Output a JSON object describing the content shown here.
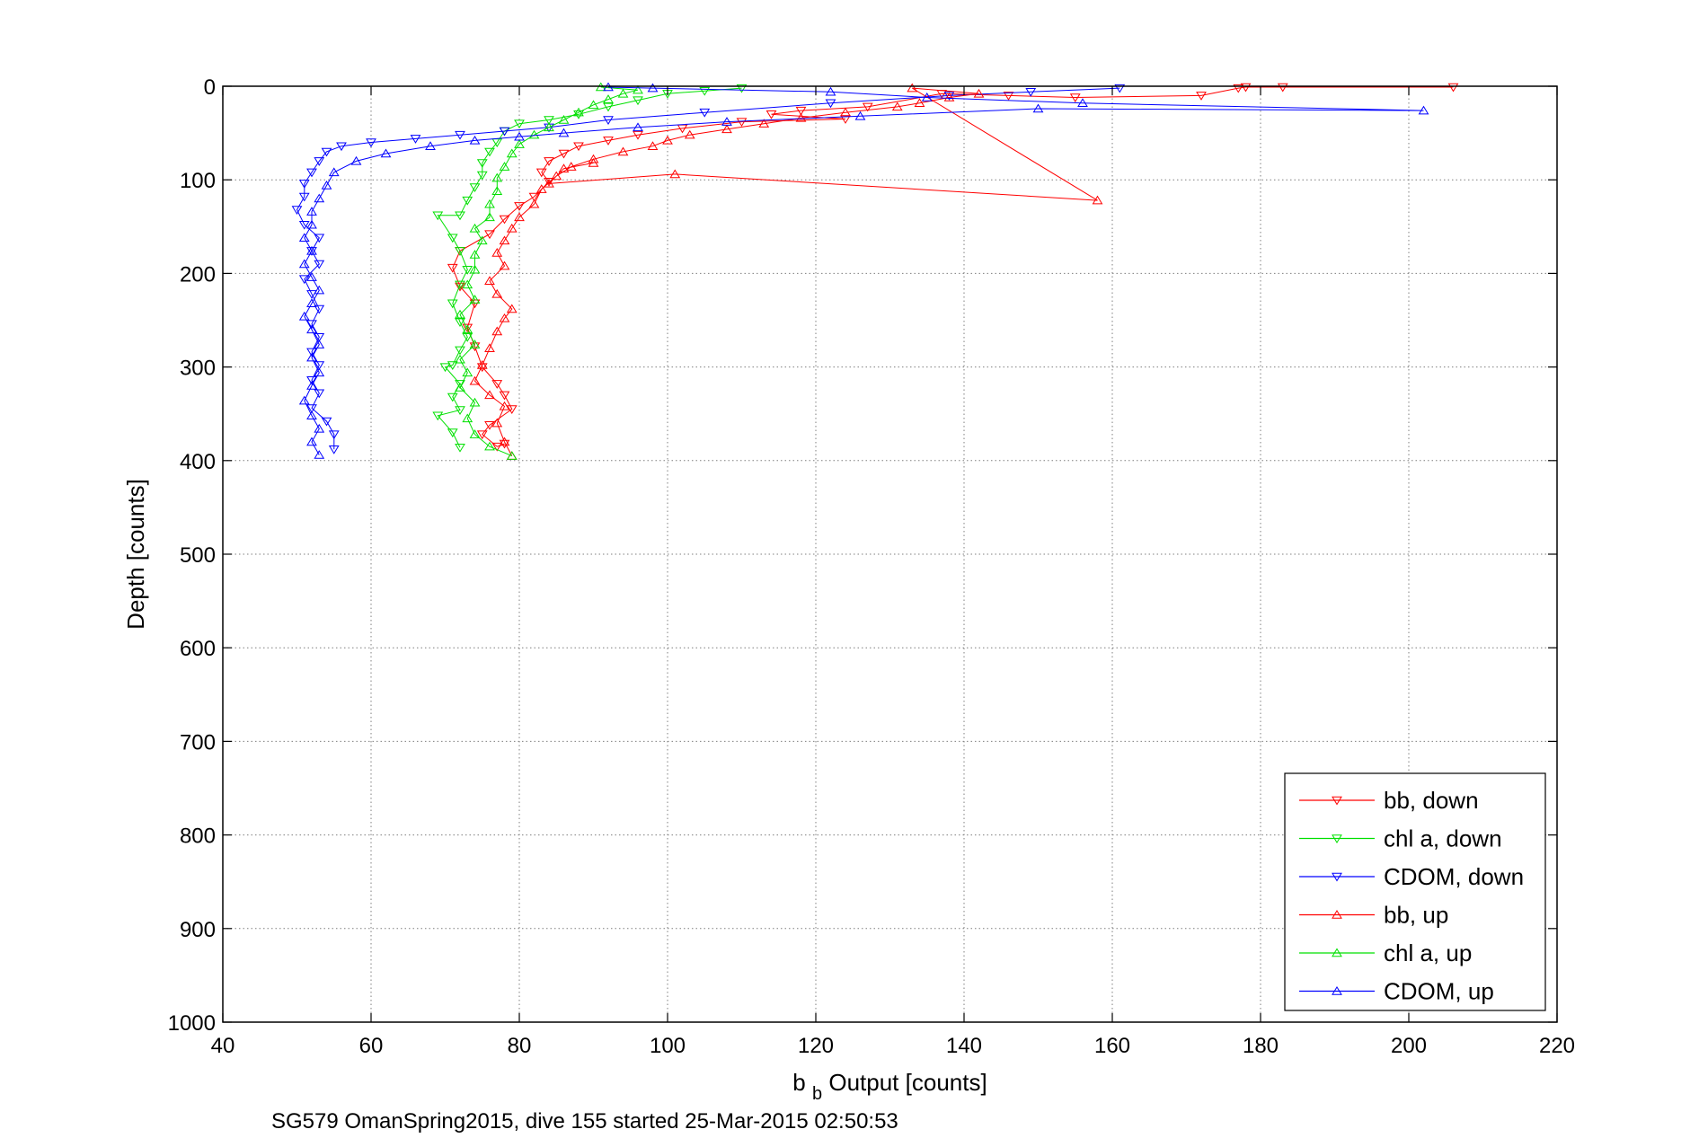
{
  "chart_data": {
    "type": "scatter",
    "title": "",
    "xlabel_main": "b",
    "xlabel_sub": "b",
    "xlabel_rest": " Output [counts]",
    "ylabel": "Depth [counts]",
    "caption": "SG579 OmanSpring2015, dive 155 started 25-Mar-2015 02:50:53",
    "xlim": [
      40,
      220
    ],
    "ylim": [
      0,
      1000
    ],
    "y_reversed": true,
    "x_ticks": [
      40,
      60,
      80,
      100,
      120,
      140,
      160,
      180,
      200,
      220
    ],
    "y_ticks": [
      0,
      100,
      200,
      300,
      400,
      500,
      600,
      700,
      800,
      900,
      1000
    ],
    "x_tick_labels": [
      "40",
      "60",
      "80",
      "100",
      "120",
      "140",
      "160",
      "180",
      "200",
      "220"
    ],
    "y_tick_labels": [
      "0",
      "100",
      "200",
      "300",
      "400",
      "500",
      "600",
      "700",
      "800",
      "900",
      "1000"
    ],
    "grid": true,
    "legend_position": "bottom-right",
    "series": [
      {
        "name": "bb, down",
        "color": "#ff0000",
        "marker": "triangle-down",
        "points": [
          [
            206,
            1
          ],
          [
            183,
            1
          ],
          [
            178,
            1
          ],
          [
            177,
            2
          ],
          [
            172,
            10
          ],
          [
            155,
            12
          ],
          [
            146,
            10
          ],
          [
            137,
            8
          ],
          [
            127,
            22
          ],
          [
            118,
            26
          ],
          [
            114,
            30
          ],
          [
            124,
            35
          ],
          [
            110,
            38
          ],
          [
            102,
            45
          ],
          [
            96,
            52
          ],
          [
            92,
            58
          ],
          [
            88,
            64
          ],
          [
            86,
            72
          ],
          [
            84,
            80
          ],
          [
            83,
            92
          ],
          [
            84,
            102
          ],
          [
            82,
            118
          ],
          [
            80,
            128
          ],
          [
            78,
            142
          ],
          [
            76,
            158
          ],
          [
            72,
            176
          ],
          [
            71,
            194
          ],
          [
            72,
            214
          ],
          [
            74,
            232
          ],
          [
            73,
            258
          ],
          [
            74,
            278
          ],
          [
            75,
            300
          ],
          [
            77,
            318
          ],
          [
            78,
            330
          ],
          [
            79,
            345
          ],
          [
            76,
            362
          ],
          [
            75,
            372
          ],
          [
            77,
            385
          ],
          [
            78,
            382
          ]
        ]
      },
      {
        "name": "chl a, down",
        "color": "#00e000",
        "marker": "triangle-down",
        "points": [
          [
            110,
            2
          ],
          [
            105,
            5
          ],
          [
            100,
            8
          ],
          [
            96,
            15
          ],
          [
            92,
            22
          ],
          [
            88,
            30
          ],
          [
            84,
            36
          ],
          [
            80,
            40
          ],
          [
            78,
            48
          ],
          [
            77,
            60
          ],
          [
            76,
            70
          ],
          [
            75,
            82
          ],
          [
            75,
            95
          ],
          [
            74,
            108
          ],
          [
            73,
            122
          ],
          [
            72,
            138
          ],
          [
            69,
            138
          ],
          [
            71,
            162
          ],
          [
            72,
            176
          ],
          [
            73,
            196
          ],
          [
            72,
            212
          ],
          [
            71,
            232
          ],
          [
            72,
            252
          ],
          [
            73,
            268
          ],
          [
            72,
            282
          ],
          [
            71,
            298
          ],
          [
            70,
            300
          ],
          [
            72,
            318
          ],
          [
            71,
            332
          ],
          [
            72,
            346
          ],
          [
            69,
            352
          ],
          [
            71,
            370
          ],
          [
            72,
            386
          ]
        ]
      },
      {
        "name": "CDOM, down",
        "color": "#0000ff",
        "marker": "triangle-down",
        "points": [
          [
            161,
            2
          ],
          [
            149,
            6
          ],
          [
            138,
            10
          ],
          [
            122,
            18
          ],
          [
            105,
            28
          ],
          [
            92,
            36
          ],
          [
            84,
            44
          ],
          [
            78,
            48
          ],
          [
            72,
            52
          ],
          [
            66,
            56
          ],
          [
            60,
            60
          ],
          [
            56,
            64
          ],
          [
            54,
            70
          ],
          [
            53,
            80
          ],
          [
            52,
            92
          ],
          [
            51,
            104
          ],
          [
            51,
            118
          ],
          [
            50,
            132
          ],
          [
            51,
            148
          ],
          [
            53,
            162
          ],
          [
            52,
            176
          ],
          [
            53,
            190
          ],
          [
            51,
            206
          ],
          [
            52,
            222
          ],
          [
            53,
            238
          ],
          [
            52,
            254
          ],
          [
            53,
            268
          ],
          [
            52,
            284
          ],
          [
            53,
            298
          ],
          [
            52,
            314
          ],
          [
            53,
            328
          ],
          [
            52,
            344
          ],
          [
            54,
            358
          ],
          [
            55,
            372
          ],
          [
            55,
            388
          ]
        ]
      },
      {
        "name": "bb, up",
        "color": "#ff0000",
        "marker": "triangle-up",
        "points": [
          [
            79,
            395
          ],
          [
            78,
            380
          ],
          [
            77,
            360
          ],
          [
            78,
            342
          ],
          [
            76,
            330
          ],
          [
            74,
            315
          ],
          [
            75,
            298
          ],
          [
            76,
            280
          ],
          [
            77,
            262
          ],
          [
            78,
            248
          ],
          [
            79,
            238
          ],
          [
            77,
            222
          ],
          [
            76,
            208
          ],
          [
            78,
            192
          ],
          [
            77,
            178
          ],
          [
            78,
            165
          ],
          [
            79,
            152
          ],
          [
            80,
            140
          ],
          [
            82,
            126
          ],
          [
            83,
            110
          ],
          [
            85,
            96
          ],
          [
            87,
            86
          ],
          [
            90,
            78
          ],
          [
            94,
            70
          ],
          [
            98,
            64
          ],
          [
            100,
            58
          ],
          [
            103,
            52
          ],
          [
            108,
            46
          ],
          [
            113,
            40
          ],
          [
            118,
            34
          ],
          [
            124,
            28
          ],
          [
            131,
            22
          ],
          [
            134,
            18
          ],
          [
            138,
            12
          ],
          [
            142,
            8
          ],
          [
            133,
            2
          ],
          [
            158,
            122
          ],
          [
            101,
            94
          ],
          [
            84,
            104
          ],
          [
            86,
            88
          ],
          [
            90,
            82
          ]
        ]
      },
      {
        "name": "chl a, up",
        "color": "#00e000",
        "marker": "triangle-up",
        "points": [
          [
            79,
            395
          ],
          [
            76,
            385
          ],
          [
            74,
            372
          ],
          [
            73,
            355
          ],
          [
            74,
            338
          ],
          [
            72,
            322
          ],
          [
            73,
            306
          ],
          [
            72,
            292
          ],
          [
            74,
            276
          ],
          [
            73,
            260
          ],
          [
            72,
            244
          ],
          [
            74,
            228
          ],
          [
            73,
            212
          ],
          [
            74,
            196
          ],
          [
            74,
            180
          ],
          [
            75,
            165
          ],
          [
            74,
            152
          ],
          [
            76,
            140
          ],
          [
            76,
            126
          ],
          [
            77,
            112
          ],
          [
            77,
            98
          ],
          [
            78,
            86
          ],
          [
            79,
            72
          ],
          [
            80,
            62
          ],
          [
            82,
            52
          ],
          [
            84,
            44
          ],
          [
            86,
            36
          ],
          [
            88,
            28
          ],
          [
            90,
            20
          ],
          [
            92,
            14
          ],
          [
            94,
            8
          ],
          [
            96,
            4
          ],
          [
            91,
            1
          ]
        ]
      },
      {
        "name": "CDOM, up",
        "color": "#0000ff",
        "marker": "triangle-up",
        "points": [
          [
            53,
            394
          ],
          [
            52,
            380
          ],
          [
            53,
            366
          ],
          [
            52,
            352
          ],
          [
            51,
            336
          ],
          [
            52,
            320
          ],
          [
            53,
            306
          ],
          [
            52,
            290
          ],
          [
            53,
            276
          ],
          [
            52,
            260
          ],
          [
            51,
            246
          ],
          [
            52,
            232
          ],
          [
            53,
            218
          ],
          [
            52,
            204
          ],
          [
            51,
            190
          ],
          [
            52,
            176
          ],
          [
            51,
            162
          ],
          [
            52,
            148
          ],
          [
            52,
            134
          ],
          [
            53,
            120
          ],
          [
            54,
            106
          ],
          [
            55,
            92
          ],
          [
            58,
            80
          ],
          [
            62,
            72
          ],
          [
            68,
            64
          ],
          [
            74,
            58
          ],
          [
            80,
            54
          ],
          [
            86,
            50
          ],
          [
            96,
            44
          ],
          [
            108,
            38
          ],
          [
            126,
            32
          ],
          [
            150,
            24
          ],
          [
            202,
            26
          ],
          [
            156,
            18
          ],
          [
            135,
            12
          ],
          [
            122,
            6
          ],
          [
            98,
            2
          ],
          [
            92,
            1
          ]
        ]
      }
    ]
  }
}
